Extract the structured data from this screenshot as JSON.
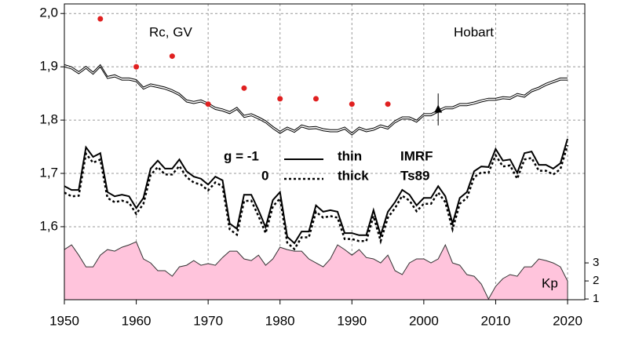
{
  "chart_data": {
    "type": "line",
    "annotations": [
      "Rc, GV",
      "Hobart",
      "Kp"
    ],
    "legend_text": [
      "g  = -1",
      "thin",
      "IMRF",
      "0",
      "thick",
      "Ts89"
    ],
    "x": [
      1950,
      1951,
      1952,
      1953,
      1954,
      1955,
      1956,
      1957,
      1958,
      1959,
      1960,
      1961,
      1962,
      1963,
      1964,
      1965,
      1966,
      1967,
      1968,
      1969,
      1970,
      1971,
      1972,
      1973,
      1974,
      1975,
      1976,
      1977,
      1978,
      1979,
      1980,
      1981,
      1982,
      1983,
      1984,
      1985,
      1986,
      1987,
      1988,
      1989,
      1990,
      1991,
      1992,
      1993,
      1994,
      1995,
      1996,
      1997,
      1998,
      1999,
      2000,
      2001,
      2002,
      2003,
      2004,
      2005,
      2006,
      2007,
      2008,
      2009,
      2010,
      2011,
      2012,
      2013,
      2014,
      2015,
      2016,
      2017,
      2018,
      2019,
      2020
    ],
    "series": [
      {
        "color": "#000000",
        "width": 1,
        "dash": "none",
        "values": [
          1.904,
          1.9,
          1.891,
          1.901,
          1.89,
          1.904,
          1.882,
          1.885,
          1.879,
          1.879,
          1.876,
          1.862,
          1.868,
          1.865,
          1.862,
          1.857,
          1.85,
          1.838,
          1.835,
          1.838,
          1.832,
          1.824,
          1.821,
          1.816,
          1.824,
          1.809,
          1.812,
          1.806,
          1.799,
          1.788,
          1.779,
          1.787,
          1.781,
          1.791,
          1.787,
          1.788,
          1.784,
          1.782,
          1.782,
          1.787,
          1.776,
          1.787,
          1.782,
          1.785,
          1.791,
          1.787,
          1.799,
          1.806,
          1.806,
          1.8,
          1.812,
          1.812,
          1.819,
          1.825,
          1.825,
          1.831,
          1.831,
          1.834,
          1.838,
          1.841,
          1.841,
          1.844,
          1.843,
          1.85,
          1.847,
          1.857,
          1.862,
          1.869,
          1.874,
          1.879,
          1.879
        ]
      },
      {
        "color": "#000000",
        "width": 1,
        "dash": "none",
        "values": [
          1.9,
          1.896,
          1.887,
          1.897,
          1.886,
          1.9,
          1.878,
          1.881,
          1.875,
          1.875,
          1.872,
          1.858,
          1.864,
          1.861,
          1.858,
          1.853,
          1.846,
          1.834,
          1.831,
          1.834,
          1.828,
          1.82,
          1.817,
          1.812,
          1.82,
          1.805,
          1.808,
          1.802,
          1.795,
          1.784,
          1.775,
          1.783,
          1.777,
          1.787,
          1.783,
          1.784,
          1.78,
          1.778,
          1.778,
          1.783,
          1.772,
          1.783,
          1.778,
          1.781,
          1.787,
          1.783,
          1.795,
          1.802,
          1.802,
          1.796,
          1.808,
          1.808,
          1.815,
          1.821,
          1.821,
          1.827,
          1.827,
          1.83,
          1.834,
          1.837,
          1.837,
          1.84,
          1.839,
          1.846,
          1.843,
          1.853,
          1.858,
          1.865,
          1.87,
          1.875,
          1.875
        ]
      },
      {
        "color": "#000000",
        "width": 2,
        "dash": "none",
        "values": [
          1.676,
          1.669,
          1.669,
          1.749,
          1.731,
          1.738,
          1.665,
          1.657,
          1.66,
          1.657,
          1.635,
          1.654,
          1.709,
          1.724,
          1.709,
          1.709,
          1.726,
          1.704,
          1.694,
          1.69,
          1.679,
          1.694,
          1.687,
          1.606,
          1.596,
          1.66,
          1.66,
          1.631,
          1.599,
          1.65,
          1.665,
          1.581,
          1.569,
          1.591,
          1.591,
          1.64,
          1.628,
          1.631,
          1.628,
          1.588,
          1.588,
          1.584,
          1.584,
          1.631,
          1.584,
          1.628,
          1.646,
          1.669,
          1.66,
          1.64,
          1.654,
          1.654,
          1.676,
          1.657,
          1.606,
          1.654,
          1.665,
          1.704,
          1.713,
          1.712,
          1.746,
          1.724,
          1.726,
          1.701,
          1.738,
          1.741,
          1.716,
          1.716,
          1.709,
          1.719,
          1.765
        ]
      },
      {
        "color": "#000000",
        "width": 2.5,
        "dash": "3,3",
        "values": [
          1.664,
          1.657,
          1.658,
          1.737,
          1.72,
          1.726,
          1.654,
          1.646,
          1.649,
          1.645,
          1.624,
          1.643,
          1.697,
          1.712,
          1.698,
          1.698,
          1.714,
          1.693,
          1.683,
          1.679,
          1.668,
          1.683,
          1.676,
          1.595,
          1.585,
          1.648,
          1.649,
          1.62,
          1.588,
          1.638,
          1.653,
          1.57,
          1.558,
          1.58,
          1.58,
          1.628,
          1.617,
          1.62,
          1.617,
          1.577,
          1.577,
          1.573,
          1.573,
          1.62,
          1.573,
          1.617,
          1.635,
          1.658,
          1.649,
          1.629,
          1.643,
          1.643,
          1.664,
          1.646,
          1.595,
          1.643,
          1.654,
          1.693,
          1.702,
          1.701,
          1.734,
          1.713,
          1.715,
          1.69,
          1.726,
          1.729,
          1.705,
          1.705,
          1.698,
          1.708,
          1.753
        ]
      },
      {
        "color": "#ffc4dc",
        "outline": "#333333",
        "area": true,
        "axis": "y2",
        "values": [
          3.74,
          4.0,
          3.43,
          2.78,
          2.78,
          3.43,
          3.74,
          3.65,
          3.87,
          4.0,
          4.17,
          3.22,
          3.0,
          2.57,
          2.57,
          2.26,
          2.78,
          2.87,
          3.13,
          2.87,
          2.96,
          2.87,
          3.3,
          3.65,
          3.65,
          3.22,
          3.13,
          3.43,
          2.87,
          3.22,
          3.87,
          3.74,
          3.65,
          3.65,
          3.22,
          3.0,
          2.78,
          3.22,
          4.0,
          3.74,
          3.43,
          3.74,
          3.3,
          3.22,
          3.0,
          3.43,
          2.57,
          2.35,
          3.0,
          3.22,
          3.22,
          3.0,
          3.22,
          4.0,
          3.0,
          2.87,
          2.35,
          2.26,
          1.83,
          1.0,
          1.7,
          2.13,
          2.35,
          2.26,
          2.78,
          2.78,
          3.22,
          3.13,
          3.0,
          2.78,
          2.0
        ]
      }
    ],
    "points": {
      "color": "#e02020",
      "x": [
        1955,
        1960,
        1965,
        1970,
        1975,
        1980,
        1985,
        1990,
        1995
      ],
      "values": [
        1.99,
        1.9,
        1.92,
        1.83,
        1.86,
        1.84,
        1.84,
        1.83,
        1.83
      ]
    },
    "marker": {
      "x": 2002,
      "value": 1.82,
      "error": 0.03
    },
    "xlim": [
      1950,
      2022.4
    ],
    "xticks": [
      1950,
      1960,
      1970,
      1980,
      1990,
      2000,
      2010,
      2020
    ],
    "ylim": [
      1.463,
      2.018
    ],
    "yticks": [
      {
        "value": 1.6,
        "label": "1,6"
      },
      {
        "value": 1.7,
        "label": "1,7"
      },
      {
        "value": 1.8,
        "label": "1,8"
      },
      {
        "value": 1.9,
        "label": "1,9"
      },
      {
        "value": 2.0,
        "label": "2,0"
      }
    ],
    "y2lim": [
      0.96,
      17.35
    ],
    "y2ticks": [
      1,
      2,
      3
    ],
    "grid": true
  }
}
